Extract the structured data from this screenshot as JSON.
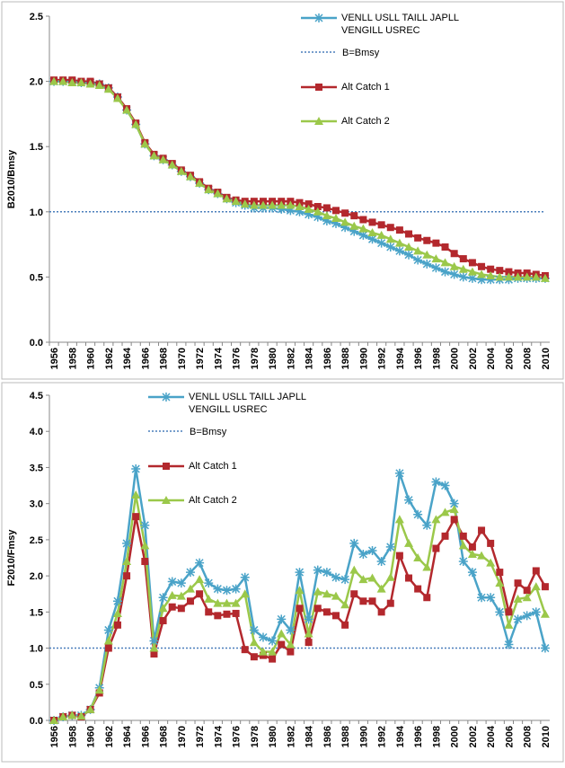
{
  "chart_data": [
    {
      "type": "line",
      "ylabel": "B2010/Bmsy",
      "categories": [
        "1956",
        null,
        "1958",
        null,
        "1960",
        null,
        "1962",
        null,
        "1964",
        null,
        "1966",
        null,
        "1968",
        null,
        "1970",
        null,
        "1972",
        null,
        "1974",
        null,
        "1976",
        null,
        "1978",
        null,
        "1980",
        null,
        "1982",
        null,
        "1984",
        null,
        "1986",
        null,
        "1988",
        null,
        "1990",
        null,
        "1992",
        null,
        "1994",
        null,
        "1996",
        null,
        "1998",
        null,
        "2000",
        null,
        "2002",
        null,
        "2004",
        null,
        "2006",
        null,
        "2008",
        null,
        "2010"
      ],
      "series": [
        {
          "name": "VENLL USLL TAILL JAPLL VENGILL USREC",
          "color": "#4aa3c8",
          "marker": "star",
          "values": [
            2.0,
            2.0,
            2.0,
            1.99,
            1.99,
            1.98,
            1.95,
            1.88,
            1.78,
            1.67,
            1.52,
            1.43,
            1.4,
            1.36,
            1.31,
            1.27,
            1.22,
            1.17,
            1.14,
            1.1,
            1.07,
            1.05,
            1.03,
            1.03,
            1.03,
            1.02,
            1.01,
            1.0,
            0.98,
            0.96,
            0.93,
            0.91,
            0.88,
            0.85,
            0.82,
            0.79,
            0.76,
            0.73,
            0.7,
            0.67,
            0.63,
            0.6,
            0.57,
            0.54,
            0.52,
            0.5,
            0.49,
            0.48,
            0.48,
            0.48,
            0.48,
            0.49,
            0.49,
            0.49,
            0.49
          ]
        },
        {
          "name": "Alt Catch 1",
          "color": "#b3282d",
          "marker": "square",
          "values": [
            2.01,
            2.01,
            2.01,
            2.0,
            2.0,
            1.98,
            1.95,
            1.88,
            1.79,
            1.68,
            1.53,
            1.44,
            1.41,
            1.37,
            1.32,
            1.28,
            1.23,
            1.18,
            1.15,
            1.11,
            1.09,
            1.08,
            1.08,
            1.08,
            1.08,
            1.08,
            1.08,
            1.07,
            1.06,
            1.04,
            1.03,
            1.01,
            0.99,
            0.97,
            0.94,
            0.92,
            0.9,
            0.88,
            0.86,
            0.83,
            0.8,
            0.78,
            0.76,
            0.73,
            0.68,
            0.64,
            0.61,
            0.58,
            0.56,
            0.55,
            0.54,
            0.53,
            0.53,
            0.52,
            0.51
          ]
        },
        {
          "name": "Alt Catch 2",
          "color": "#9bc84a",
          "marker": "triangle",
          "values": [
            2.0,
            2.0,
            1.99,
            1.99,
            1.98,
            1.97,
            1.94,
            1.87,
            1.78,
            1.67,
            1.52,
            1.43,
            1.4,
            1.36,
            1.31,
            1.27,
            1.22,
            1.17,
            1.14,
            1.1,
            1.08,
            1.06,
            1.05,
            1.05,
            1.05,
            1.05,
            1.05,
            1.04,
            1.02,
            1.0,
            0.97,
            0.95,
            0.92,
            0.89,
            0.87,
            0.84,
            0.82,
            0.79,
            0.76,
            0.73,
            0.7,
            0.67,
            0.64,
            0.61,
            0.58,
            0.56,
            0.54,
            0.52,
            0.51,
            0.5,
            0.5,
            0.5,
            0.5,
            0.5,
            0.49
          ]
        }
      ],
      "reference_line": {
        "name": "B=Bmsy",
        "value": 1,
        "color": "#4a7ebb"
      },
      "ylim": [
        0,
        2.5
      ],
      "yticks": [
        {
          "value": 0,
          "label": "0.0"
        },
        {
          "value": 0.5,
          "label": "0.5"
        },
        {
          "value": 1,
          "label": "1.0"
        },
        {
          "value": 1.5,
          "label": "1.5"
        },
        {
          "value": 2,
          "label": "2.0"
        },
        {
          "value": 2.5,
          "label": "2.5"
        }
      ]
    },
    {
      "type": "line",
      "ylabel": "F2010/Fmsy",
      "categories": [
        "1956",
        null,
        "1958",
        null,
        "1960",
        null,
        "1962",
        null,
        "1964",
        null,
        "1966",
        null,
        "1968",
        null,
        "1970",
        null,
        "1972",
        null,
        "1974",
        null,
        "1976",
        null,
        "1978",
        null,
        "1980",
        null,
        "1982",
        null,
        "1984",
        null,
        "1986",
        null,
        "1988",
        null,
        "1990",
        null,
        "1992",
        null,
        "1994",
        null,
        "1996",
        null,
        "1998",
        null,
        "2000",
        null,
        "2002",
        null,
        "2004",
        null,
        "2006",
        null,
        "2008",
        null,
        "2010"
      ],
      "series": [
        {
          "name": "VENLL USLL TAILL JAPLL VENGILL USREC",
          "color": "#4aa3c8",
          "marker": "star",
          "values": [
            0,
            0.05,
            0.07,
            0.07,
            0.15,
            0.45,
            1.25,
            1.65,
            2.45,
            3.48,
            2.7,
            1.1,
            1.7,
            1.92,
            1.9,
            2.05,
            2.18,
            1.9,
            1.82,
            1.8,
            1.82,
            1.98,
            1.25,
            1.15,
            1.1,
            1.4,
            1.25,
            2.05,
            1.4,
            2.08,
            2.05,
            1.98,
            1.95,
            2.45,
            2.3,
            2.35,
            2.2,
            2.4,
            3.42,
            3.05,
            2.85,
            2.7,
            3.3,
            3.25,
            3.0,
            2.2,
            2.05,
            1.7,
            1.7,
            1.5,
            1.05,
            1.4,
            1.45,
            1.5,
            1.0
          ]
        },
        {
          "name": "Alt Catch 1",
          "color": "#b3282d",
          "marker": "square",
          "values": [
            0,
            0.05,
            0.07,
            0.05,
            0.15,
            0.38,
            1.0,
            1.32,
            2.0,
            2.82,
            2.2,
            0.92,
            1.38,
            1.57,
            1.55,
            1.65,
            1.75,
            1.5,
            1.45,
            1.47,
            1.48,
            0.98,
            0.88,
            0.9,
            0.85,
            1.05,
            0.95,
            1.55,
            1.08,
            1.55,
            1.5,
            1.45,
            1.32,
            1.75,
            1.65,
            1.65,
            1.5,
            1.62,
            2.28,
            1.97,
            1.82,
            1.7,
            2.38,
            2.55,
            2.78,
            2.55,
            2.4,
            2.63,
            2.45,
            2.05,
            1.5,
            1.9,
            1.8,
            2.07,
            1.85
          ]
        },
        {
          "name": "Alt Catch 2",
          "color": "#9bc84a",
          "marker": "triangle",
          "values": [
            0,
            0.05,
            0.07,
            0.06,
            0.15,
            0.42,
            1.1,
            1.48,
            2.2,
            3.12,
            2.42,
            1.0,
            1.55,
            1.73,
            1.72,
            1.82,
            1.95,
            1.68,
            1.62,
            1.62,
            1.62,
            1.75,
            1.08,
            0.95,
            0.95,
            1.2,
            1.05,
            1.8,
            1.2,
            1.78,
            1.75,
            1.72,
            1.6,
            2.08,
            1.95,
            1.97,
            1.82,
            1.98,
            2.78,
            2.45,
            2.25,
            2.12,
            2.78,
            2.88,
            2.92,
            2.42,
            2.3,
            2.28,
            2.18,
            1.9,
            1.32,
            1.68,
            1.7,
            1.85,
            1.47
          ]
        }
      ],
      "reference_line": {
        "name": "B=Bmsy",
        "value": 1,
        "color": "#4a7ebb"
      },
      "ylim": [
        0,
        4.5
      ],
      "yticks": [
        {
          "value": 0,
          "label": "0.0"
        },
        {
          "value": 0.5,
          "label": "0.5"
        },
        {
          "value": 1,
          "label": "1.0"
        },
        {
          "value": 1.5,
          "label": "1.5"
        },
        {
          "value": 2,
          "label": "2.0"
        },
        {
          "value": 2.5,
          "label": "2.5"
        },
        {
          "value": 3,
          "label": "3.0"
        },
        {
          "value": 3.5,
          "label": "3.5"
        },
        {
          "value": 4,
          "label": "4.0"
        },
        {
          "value": 4.5,
          "label": "4.5"
        }
      ]
    }
  ]
}
